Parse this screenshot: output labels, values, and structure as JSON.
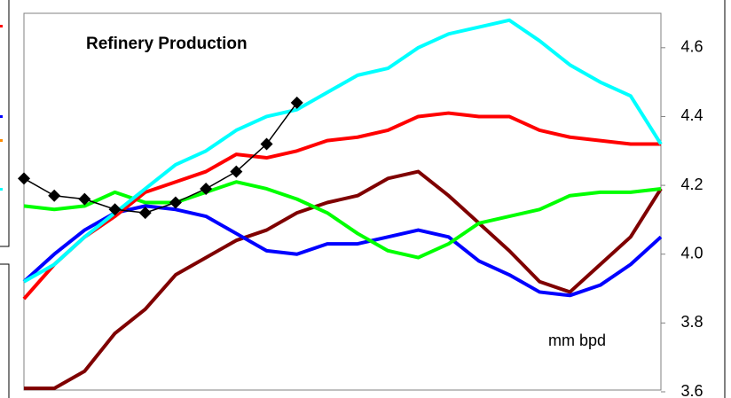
{
  "chart_data": {
    "type": "line",
    "title": "Refinery Production",
    "annotation": "mm bpd",
    "categories": [
      null,
      null,
      null,
      null,
      null,
      null,
      null,
      null,
      null,
      null,
      null,
      null,
      null,
      null,
      null,
      null,
      null,
      null,
      null,
      null,
      null,
      null
    ],
    "ylim": [
      3.6,
      4.7
    ],
    "yticks": [
      3.6,
      3.8,
      {
        "value": 4,
        "label": "4.0"
      },
      4.2,
      4.4,
      4.6
    ],
    "series": [
      {
        "color": "#7f0000",
        "values": [
          3.61,
          3.61,
          3.66,
          3.77,
          3.84,
          3.94,
          3.99,
          4.04,
          4.07,
          4.12,
          4.15,
          4.17,
          4.22,
          4.24,
          4.17,
          4.09,
          4.01,
          3.92,
          3.89,
          3.97,
          4.05,
          4.19
        ]
      },
      {
        "color": "#0000ff",
        "values": [
          3.92,
          4.0,
          4.07,
          4.12,
          4.14,
          4.13,
          4.11,
          4.06,
          4.01,
          4.0,
          4.03,
          4.03,
          4.05,
          4.07,
          4.05,
          3.98,
          3.94,
          3.89,
          3.88,
          3.91,
          3.97,
          4.05
        ]
      },
      {
        "color": "#00ff00",
        "values": [
          4.14,
          4.13,
          4.14,
          4.18,
          4.15,
          4.15,
          4.18,
          4.21,
          4.19,
          4.16,
          4.12,
          4.06,
          4.01,
          3.99,
          4.03,
          4.09,
          4.11,
          4.13,
          4.17,
          4.18,
          4.18,
          4.19
        ]
      },
      {
        "color": "#ff0000",
        "values": [
          3.87,
          3.97,
          4.05,
          4.11,
          4.18,
          4.21,
          4.24,
          4.29,
          4.28,
          4.3,
          4.33,
          4.34,
          4.36,
          4.4,
          4.41,
          4.4,
          4.4,
          4.36,
          4.34,
          4.33,
          4.32,
          4.32
        ]
      },
      {
        "color": "#00ffff",
        "values": [
          3.92,
          3.97,
          4.05,
          4.12,
          4.19,
          4.26,
          4.3,
          4.36,
          4.4,
          4.42,
          4.47,
          4.52,
          4.54,
          4.6,
          4.64,
          4.66,
          4.68,
          4.62,
          4.55,
          4.5,
          4.46,
          4.32
        ]
      },
      {
        "color": "#000000",
        "marker": "diamond",
        "values": [
          4.22,
          4.17,
          4.16,
          4.13,
          4.12,
          4.15,
          4.19,
          4.24,
          4.32,
          4.44,
          null,
          null,
          null,
          null,
          null,
          null,
          null,
          null,
          null,
          null,
          null,
          null
        ]
      }
    ]
  }
}
